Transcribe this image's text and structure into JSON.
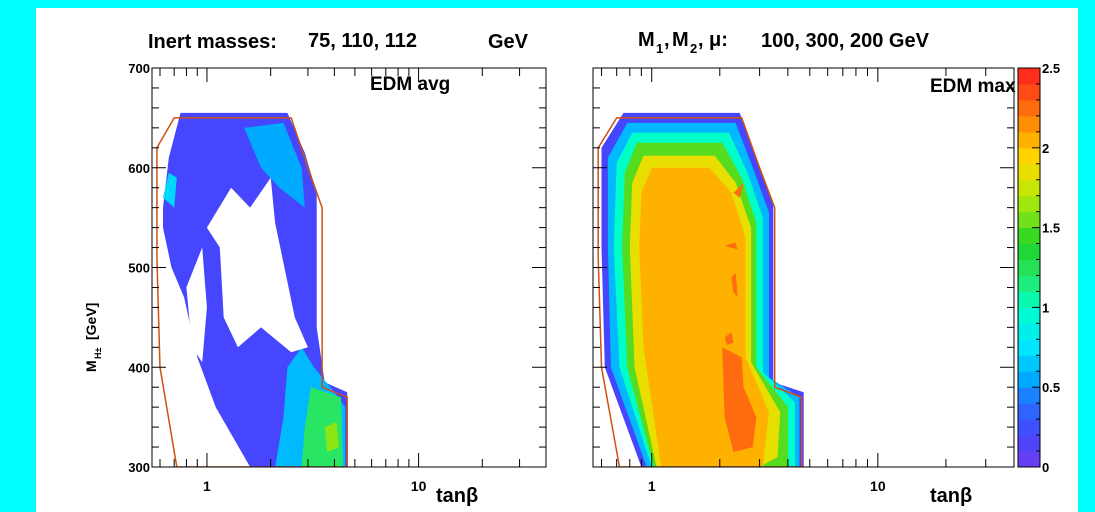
{
  "header": {
    "left_prefix": "Inert masses:",
    "left_values": "75, 110, 112",
    "left_unit": "GeV",
    "right_prefix_m1": "M",
    "right_prefix_m1_sub": "1",
    "right_prefix_m2": "M",
    "right_prefix_m2_sub": "2",
    "right_mu": "μ:",
    "right_values": "100, 300, 200 GeV"
  },
  "chart_data": [
    {
      "type": "heatmap",
      "title": "EDM avg",
      "xlabel": "tanβ",
      "ylabel": "M_H± [GeV]",
      "ylabel_main": "M",
      "ylabel_sub": "H±",
      "ylabel_unit": "[GeV]",
      "x_scale": "log",
      "xlim": [
        0.55,
        40
      ],
      "ylim": [
        300,
        700
      ],
      "x_ticks": [
        {
          "value": 1,
          "label": "1"
        },
        {
          "value": 10,
          "label": "10"
        }
      ],
      "y_ticks": [
        {
          "value": 300,
          "label": "300"
        },
        {
          "value": 400,
          "label": "400"
        },
        {
          "value": 500,
          "label": "500"
        },
        {
          "value": 600,
          "label": "600"
        },
        {
          "value": 700,
          "label": "700"
        }
      ],
      "outline_region": [
        [
          0.72,
          300
        ],
        [
          0.6,
          400
        ],
        [
          0.58,
          510
        ],
        [
          0.58,
          620
        ],
        [
          0.7,
          650
        ],
        [
          2.5,
          650
        ],
        [
          3.0,
          600
        ],
        [
          3.5,
          560
        ],
        [
          3.5,
          380
        ],
        [
          4.6,
          370
        ],
        [
          4.6,
          300
        ]
      ],
      "regions": [
        {
          "level": 0.2,
          "points": [
            [
              0.62,
              560
            ],
            [
              0.66,
              610
            ],
            [
              0.75,
              655
            ],
            [
              2.4,
              655
            ],
            [
              2.9,
              615
            ],
            [
              3.3,
              575
            ],
            [
              3.3,
              440
            ],
            [
              3.6,
              385
            ],
            [
              4.6,
              375
            ],
            [
              4.6,
              300
            ],
            [
              1.6,
              300
            ],
            [
              1.1,
              360
            ],
            [
              0.9,
              410
            ],
            [
              0.78,
              470
            ],
            [
              0.68,
              500
            ],
            [
              0.62,
              540
            ]
          ]
        },
        {
          "level": 0.55,
          "points": [
            [
              1.5,
              640
            ],
            [
              2.3,
              645
            ],
            [
              2.8,
              600
            ],
            [
              2.9,
              560
            ],
            [
              2.2,
              580
            ],
            [
              1.8,
              600
            ]
          ]
        },
        {
          "level": 0.6,
          "points": [
            [
              2.4,
              400
            ],
            [
              2.8,
              420
            ],
            [
              3.2,
              400
            ],
            [
              4.0,
              375
            ],
            [
              4.5,
              360
            ],
            [
              4.5,
              300
            ],
            [
              2.1,
              300
            ],
            [
              2.3,
              350
            ]
          ]
        },
        {
          "level": 1.2,
          "points": [
            [
              3.1,
              380
            ],
            [
              4.3,
              370
            ],
            [
              4.4,
              300
            ],
            [
              2.8,
              300
            ],
            [
              2.9,
              340
            ]
          ]
        },
        {
          "level": 1.6,
          "points": [
            [
              3.6,
              340
            ],
            [
              4.1,
              345
            ],
            [
              4.2,
              320
            ],
            [
              3.7,
              315
            ]
          ]
        },
        {
          "level": 0.7,
          "points": [
            [
              0.62,
              570
            ],
            [
              0.66,
              595
            ],
            [
              0.72,
              590
            ],
            [
              0.7,
              560
            ]
          ]
        }
      ],
      "blank_regions": [
        {
          "points": [
            [
              1.0,
              540
            ],
            [
              1.3,
              580
            ],
            [
              1.6,
              560
            ],
            [
              2.0,
              590
            ],
            [
              2.1,
              545
            ],
            [
              2.6,
              450
            ],
            [
              3.0,
              420
            ],
            [
              2.5,
              415
            ],
            [
              1.8,
              440
            ],
            [
              1.4,
              420
            ],
            [
              1.2,
              450
            ],
            [
              1.15,
              520
            ]
          ]
        },
        {
          "points": [
            [
              0.8,
              480
            ],
            [
              0.95,
              520
            ],
            [
              1.0,
              460
            ],
            [
              0.95,
              405
            ],
            [
              0.85,
              420
            ]
          ]
        }
      ]
    },
    {
      "type": "heatmap",
      "title": "EDM max",
      "xlabel": "tanβ",
      "x_scale": "log",
      "xlim": [
        0.55,
        40
      ],
      "ylim": [
        300,
        700
      ],
      "x_ticks": [
        {
          "value": 1,
          "label": "1"
        },
        {
          "value": 10,
          "label": "10"
        }
      ],
      "outline_region": [
        [
          0.72,
          300
        ],
        [
          0.6,
          400
        ],
        [
          0.58,
          510
        ],
        [
          0.58,
          620
        ],
        [
          0.7,
          650
        ],
        [
          2.5,
          650
        ],
        [
          3.0,
          600
        ],
        [
          3.5,
          560
        ],
        [
          3.5,
          380
        ],
        [
          4.6,
          370
        ],
        [
          4.6,
          300
        ]
      ],
      "regions": [
        {
          "level": 0.2,
          "points": [
            [
              0.9,
              300
            ],
            [
              0.62,
              400
            ],
            [
              0.6,
              520
            ],
            [
              0.6,
              620
            ],
            [
              0.75,
              655
            ],
            [
              2.45,
              655
            ],
            [
              2.95,
              605
            ],
            [
              3.45,
              565
            ],
            [
              3.45,
              385
            ],
            [
              4.7,
              375
            ],
            [
              4.7,
              300
            ]
          ]
        },
        {
          "level": 0.6,
          "points": [
            [
              0.95,
              300
            ],
            [
              0.66,
              400
            ],
            [
              0.64,
              520
            ],
            [
              0.64,
              610
            ],
            [
              0.78,
              645
            ],
            [
              2.35,
              645
            ],
            [
              2.8,
              600
            ],
            [
              3.3,
              555
            ],
            [
              3.3,
              390
            ],
            [
              4.5,
              370
            ],
            [
              4.5,
              300
            ]
          ]
        },
        {
          "level": 1.0,
          "points": [
            [
              1.0,
              300
            ],
            [
              0.72,
              400
            ],
            [
              0.68,
              520
            ],
            [
              0.7,
              605
            ],
            [
              0.82,
              635
            ],
            [
              2.2,
              635
            ],
            [
              2.65,
              595
            ],
            [
              3.1,
              550
            ],
            [
              3.1,
              395
            ],
            [
              4.3,
              365
            ],
            [
              4.3,
              300
            ]
          ]
        },
        {
          "level": 1.5,
          "points": [
            [
              1.02,
              300
            ],
            [
              0.78,
              400
            ],
            [
              0.74,
              520
            ],
            [
              0.76,
              595
            ],
            [
              0.86,
              625
            ],
            [
              2.05,
              625
            ],
            [
              2.5,
              590
            ],
            [
              2.9,
              545
            ],
            [
              2.9,
              400
            ],
            [
              4.0,
              360
            ],
            [
              4.0,
              300
            ]
          ]
        },
        {
          "level": 1.85,
          "points": [
            [
              1.05,
              300
            ],
            [
              0.84,
              400
            ],
            [
              0.8,
              520
            ],
            [
              0.82,
              585
            ],
            [
              0.92,
              612
            ],
            [
              1.9,
              612
            ],
            [
              2.35,
              585
            ],
            [
              2.75,
              540
            ],
            [
              2.75,
              405
            ],
            [
              3.7,
              355
            ],
            [
              3.6,
              310
            ],
            [
              3.0,
              300
            ]
          ]
        },
        {
          "level": 2.05,
          "points": [
            [
              1.1,
              300
            ],
            [
              0.92,
              420
            ],
            [
              0.88,
              520
            ],
            [
              0.9,
              575
            ],
            [
              1.0,
              600
            ],
            [
              1.8,
              600
            ],
            [
              2.25,
              575
            ],
            [
              2.6,
              530
            ],
            [
              2.6,
              410
            ],
            [
              3.3,
              355
            ],
            [
              3.1,
              300
            ]
          ]
        },
        {
          "level": 2.25,
          "points": [
            [
              2.05,
              420
            ],
            [
              2.5,
              410
            ],
            [
              2.55,
              380
            ],
            [
              2.9,
              350
            ],
            [
              2.8,
              320
            ],
            [
              2.3,
              315
            ],
            [
              2.1,
              350
            ]
          ]
        },
        {
          "level": 2.25,
          "points": [
            [
              2.1,
              430
            ],
            [
              2.25,
              435
            ],
            [
              2.3,
              425
            ],
            [
              2.15,
              422
            ]
          ]
        },
        {
          "level": 2.25,
          "points": [
            [
              2.1,
              522
            ],
            [
              2.35,
              525
            ],
            [
              2.4,
              518
            ]
          ]
        },
        {
          "level": 2.25,
          "points": [
            [
              2.3,
              575
            ],
            [
              2.55,
              585
            ],
            [
              2.45,
              570
            ]
          ]
        },
        {
          "level": 2.25,
          "points": [
            [
              2.25,
              490
            ],
            [
              2.35,
              495
            ],
            [
              2.4,
              470
            ],
            [
              2.3,
              475
            ]
          ]
        }
      ]
    }
  ],
  "colorbar": {
    "min": 0,
    "max": 2.5,
    "ticks": [
      {
        "value": 0,
        "label": "0"
      },
      {
        "value": 0.5,
        "label": "0.5"
      },
      {
        "value": 1,
        "label": "1"
      },
      {
        "value": 1.5,
        "label": "1.5"
      },
      {
        "value": 2,
        "label": "2"
      },
      {
        "value": 2.5,
        "label": "2.5"
      }
    ]
  }
}
